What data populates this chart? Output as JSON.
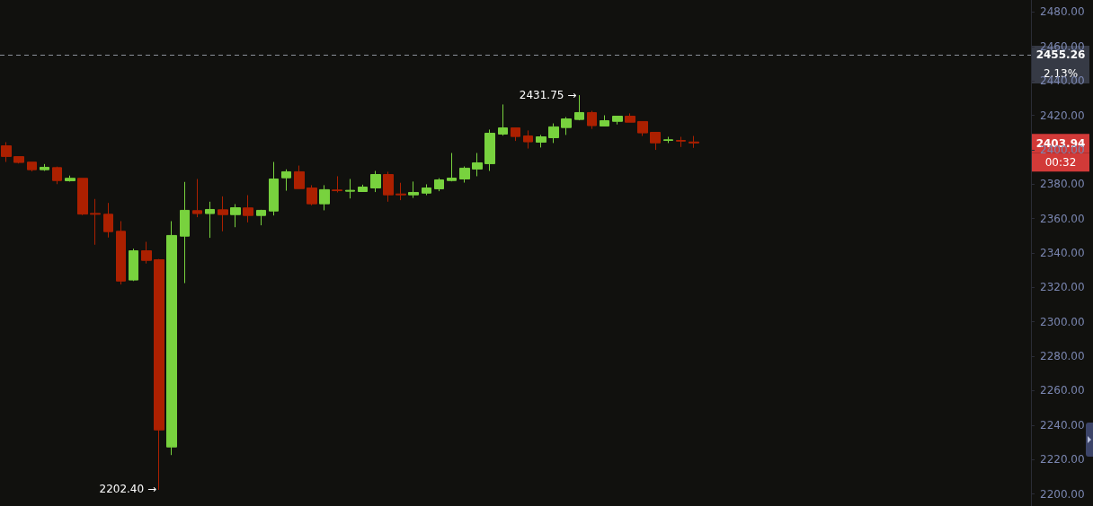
{
  "chart_data": {
    "type": "candlestick",
    "categories": [
      null,
      null,
      null,
      null,
      null,
      null,
      null,
      null,
      null,
      null,
      null,
      null,
      null,
      null,
      null,
      null,
      null,
      null,
      null,
      null,
      null,
      null,
      null,
      null,
      null,
      null,
      null,
      null,
      null,
      null,
      null,
      null,
      null,
      null,
      null,
      null,
      null,
      null,
      null,
      null,
      null,
      null,
      null,
      null,
      null,
      null,
      null,
      null,
      null,
      null,
      null,
      null,
      null,
      null,
      null,
      null,
      null,
      null,
      null,
      null,
      null,
      null,
      null,
      null,
      null,
      null,
      null,
      null,
      null,
      null,
      null,
      null,
      null,
      null,
      null,
      null,
      null,
      null,
      null,
      null,
      null
    ],
    "ohlc": [
      [
        2402.3,
        2404.4,
        2392.9,
        2396.1
      ],
      [
        2396,
        2396,
        2392,
        2392.6
      ],
      [
        2392.8,
        2392.8,
        2387.4,
        2388.4
      ],
      [
        2388.4,
        2391.7,
        2387.7,
        2389.8
      ],
      [
        2389.6,
        2390.2,
        2380,
        2382.1
      ],
      [
        2382,
        2385,
        2381.5,
        2383.4
      ],
      [
        2383.4,
        2383.4,
        2362,
        2362.6
      ],
      [
        2363,
        2371.4,
        2344.8,
        2362.5
      ],
      [
        2362.5,
        2369.1,
        2349,
        2352.4
      ],
      [
        2352.6,
        2358.5,
        2321.7,
        2323.7
      ],
      [
        2324.3,
        2342.5,
        2323.7,
        2341.3
      ],
      [
        2341.3,
        2346.5,
        2333.9,
        2335.7
      ],
      [
        2336.1,
        2336.5,
        2202.4,
        2237.2
      ],
      [
        2227.3,
        2358.5,
        2222.6,
        2350.2
      ],
      [
        2349.8,
        2381.3,
        2322.5,
        2364.8
      ],
      [
        2364.6,
        2383,
        2360.8,
        2362.9
      ],
      [
        2362.9,
        2369.8,
        2348.8,
        2365.3
      ],
      [
        2365.1,
        2372.9,
        2352.6,
        2362.3
      ],
      [
        2362.3,
        2368.4,
        2355,
        2366.3
      ],
      [
        2366.2,
        2373.6,
        2357.8,
        2361.8
      ],
      [
        2361.8,
        2365.1,
        2356.1,
        2364.8
      ],
      [
        2364.4,
        2392.9,
        2361.8,
        2383
      ],
      [
        2383.7,
        2388.6,
        2376.2,
        2387.2
      ],
      [
        2387.2,
        2390.8,
        2377.4,
        2377.4
      ],
      [
        2377.8,
        2379.4,
        2367.7,
        2368.6
      ],
      [
        2368.6,
        2379.4,
        2364.8,
        2376.8
      ],
      [
        2376.6,
        2384.6,
        2375.2,
        2376.2
      ],
      [
        2375.9,
        2383,
        2371.7,
        2376.4
      ],
      [
        2375.7,
        2379.7,
        2375.7,
        2378.3
      ],
      [
        2377.8,
        2387.7,
        2375.4,
        2385.6
      ],
      [
        2385.6,
        2387.2,
        2369.8,
        2373.8
      ],
      [
        2374.3,
        2380.8,
        2370.7,
        2373.8
      ],
      [
        2373.8,
        2381.5,
        2372,
        2375.2
      ],
      [
        2374.8,
        2379.9,
        2373.6,
        2377.8
      ],
      [
        2377.3,
        2383.5,
        2375.9,
        2382.5
      ],
      [
        2382.1,
        2398.1,
        2381.6,
        2383.5
      ],
      [
        2383,
        2390.3,
        2380.9,
        2389.3
      ],
      [
        2388.8,
        2398.1,
        2384.6,
        2392.4
      ],
      [
        2391.9,
        2411.7,
        2387.7,
        2409.6
      ],
      [
        2409.1,
        2426.3,
        2408.2,
        2412.7
      ],
      [
        2412.7,
        2412.7,
        2405.1,
        2407.7
      ],
      [
        2408,
        2411.2,
        2400.7,
        2404.6
      ],
      [
        2404.4,
        2408.6,
        2401.3,
        2407.5
      ],
      [
        2407,
        2415.3,
        2403.9,
        2413.3
      ],
      [
        2412.9,
        2419,
        2408.6,
        2417.9
      ],
      [
        2417.6,
        2431.75,
        2417.1,
        2421.6
      ],
      [
        2421.6,
        2422.6,
        2412.1,
        2414
      ],
      [
        2413.8,
        2420,
        2413.8,
        2416.9
      ],
      [
        2416.5,
        2419.5,
        2414.7,
        2419.5
      ],
      [
        2419.5,
        2421.1,
        2416,
        2416
      ],
      [
        2416.4,
        2416.4,
        2408,
        2409.8
      ],
      [
        2410.1,
        2410.1,
        2399.9,
        2404
      ],
      [
        2405.4,
        2407.5,
        2403.9,
        2405.8
      ],
      [
        2405.4,
        2407.5,
        2401.6,
        2405
      ],
      [
        2404.5,
        2408,
        2401.1,
        2403.94
      ],
      null,
      null,
      null,
      null,
      null,
      null,
      null,
      null,
      null,
      null,
      null,
      null,
      null,
      null,
      null,
      null,
      null,
      null,
      null,
      null,
      null,
      null,
      null,
      null,
      null,
      null
    ],
    "colors": [
      "#ac2000",
      "#ac2000",
      "#ac2000",
      "#78d23e",
      "#ac2000",
      "#78d23e",
      "#ac2000",
      "#ac2000",
      "#ac2000",
      "#ac2000",
      "#78d23e",
      "#ac2000",
      "#ac2000",
      "#78d23e",
      "#78d23e",
      "#ac2000",
      "#78d23e",
      "#ac2000",
      "#78d23e",
      "#ac2000",
      "#78d23e",
      "#78d23e",
      "#78d23e",
      "#ac2000",
      "#ac2000",
      "#78d23e",
      "#ac2000",
      "#78d23e",
      "#78d23e",
      "#78d23e",
      "#ac2000",
      "#ac2000",
      "#78d23e",
      "#78d23e",
      "#78d23e",
      "#78d23e",
      "#78d23e",
      "#78d23e",
      "#78d23e",
      "#78d23e",
      "#ac2000",
      "#ac2000",
      "#78d23e",
      "#78d23e",
      "#78d23e",
      "#78d23e",
      "#ac2000",
      "#78d23e",
      "#78d23e",
      "#ac2000",
      "#ac2000",
      "#ac2000",
      "#78d23e",
      "#ac2000",
      "#ac2000",
      null,
      null,
      null,
      null,
      null,
      null,
      null,
      null,
      null,
      null,
      null,
      null,
      null,
      null,
      null,
      null,
      null,
      null,
      null,
      null,
      null,
      null,
      null,
      null,
      null,
      null
    ],
    "ylim": [
      2193,
      2487
    ],
    "yticks": [
      {
        "value": 2200,
        "label": "2200.00"
      },
      {
        "value": 2220,
        "label": "2220.00"
      },
      {
        "value": 2240,
        "label": "2240.00"
      },
      {
        "value": 2260,
        "label": "2260.00"
      },
      {
        "value": 2280,
        "label": "2280.00"
      },
      {
        "value": 2300,
        "label": "2300.00"
      },
      {
        "value": 2320,
        "label": "2320.00"
      },
      {
        "value": 2340,
        "label": "2340.00"
      },
      {
        "value": 2360,
        "label": "2360.00"
      },
      {
        "value": 2380,
        "label": "2380.00"
      },
      {
        "value": 2400,
        "label": "2400.00"
      },
      {
        "value": 2420,
        "label": "2420.00"
      },
      {
        "value": 2440,
        "label": "2440.00"
      },
      {
        "value": 2460,
        "label": "2460.00"
      },
      {
        "value": 2480,
        "label": "2480.00"
      }
    ],
    "tick_labels": "y",
    "grid": false,
    "ref_lines": [
      {
        "axis": "y",
        "value": 2455.26,
        "label": "2455.26",
        "color": "#8a8f99",
        "line_style": "dashed"
      }
    ],
    "annotations": [
      "2.13%",
      "2431.75 →",
      "2202.40 →",
      "2403.94",
      "00:32"
    ]
  }
}
